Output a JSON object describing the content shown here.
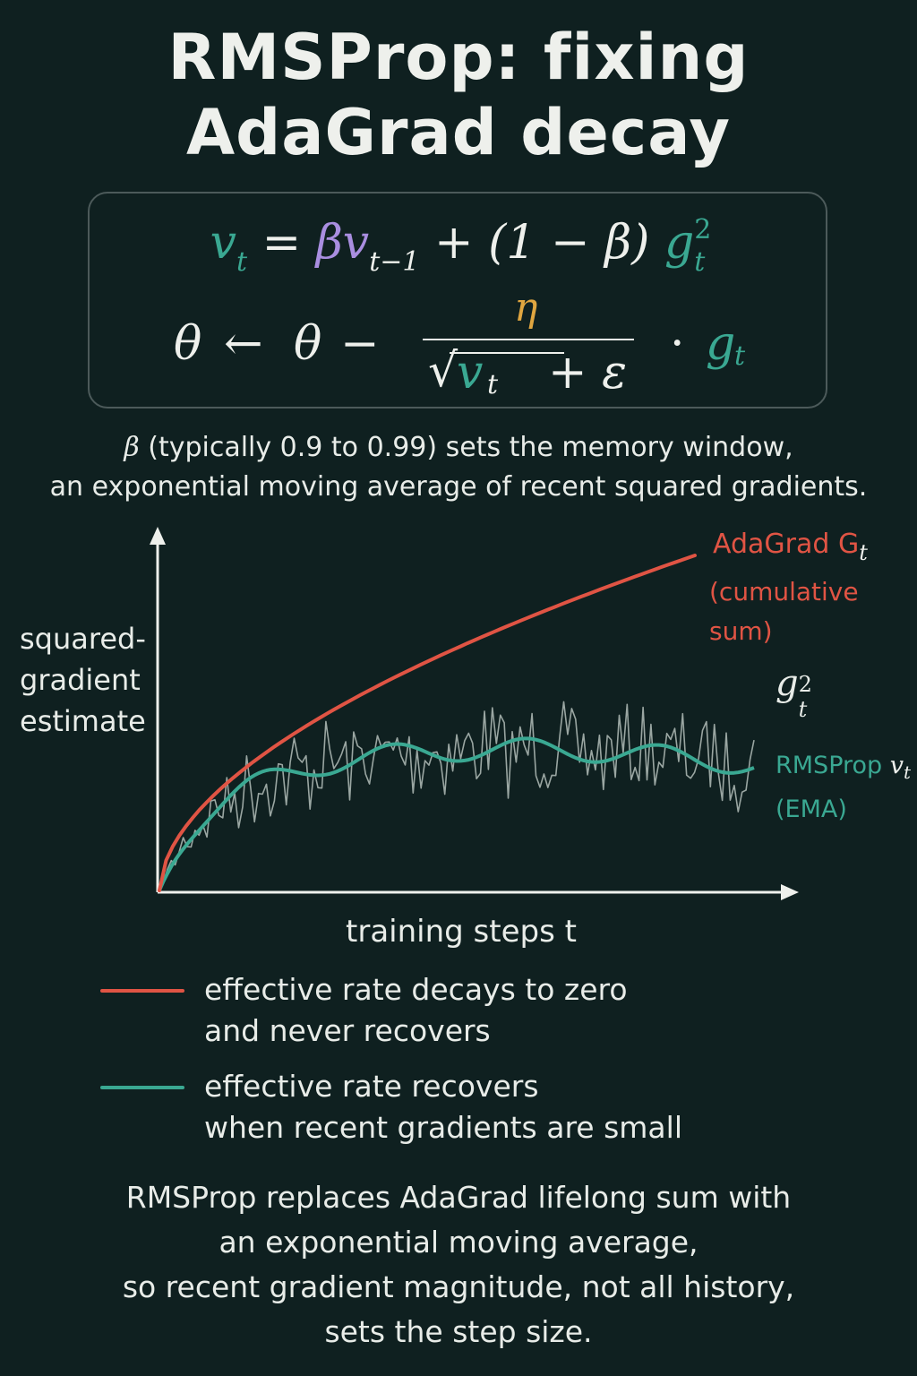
{
  "title": {
    "line1": "RMSProp: fixing",
    "line2": "AdaGrad decay"
  },
  "formula": {
    "eq1": {
      "v": "v",
      "t": "t",
      "eq": "=",
      "beta": "β",
      "v_prev": "v",
      "t_minus_1": "t−1",
      "plus": "+",
      "paren": "(1 − β)",
      "g": "g",
      "g_sub": "t",
      "g_sup": "2"
    },
    "eq2": {
      "theta": "θ",
      "arrow": "←",
      "theta2": "θ",
      "minus": "−",
      "eta": "η",
      "sqrt": "√",
      "v": "v",
      "v_sub": "t",
      "plus_eps": "+ ε",
      "dot": "·",
      "g": "g",
      "g_sub": "t"
    }
  },
  "caption": {
    "beta": "β",
    "line1_rest": " (typically 0.9 to 0.99) sets the memory window,",
    "line2": "an exponential moving average of recent squared gradients."
  },
  "chart": {
    "y_label": [
      "squared-",
      "gradient",
      "estimate"
    ],
    "x_label": "training steps t",
    "adagrad_label": "AdaGrad G",
    "adagrad_sub": "t",
    "adagrad_note": "(cumulative sum)",
    "g_label": "g",
    "g_sub": "t",
    "g_sup": "2",
    "rms_label": "RMSProp ",
    "rms_v": "v",
    "rms_sub": "t",
    "rms_note": "(EMA)",
    "colors": {
      "adagrad": "#e05444",
      "rmsprop": "#3aa892",
      "grad": "#9aa6a2",
      "axis": "#eef0ec"
    }
  },
  "legend": [
    {
      "color": "#e05444",
      "line1": "effective rate decays to zero",
      "line2": "and never recovers"
    },
    {
      "color": "#3aa892",
      "line1": "effective rate recovers",
      "line2": "when recent gradients are small"
    }
  ],
  "summary": [
    "RMSProp replaces AdaGrad lifelong sum with",
    "an exponential moving average,",
    "so recent gradient magnitude, not all history,",
    "sets the step size."
  ]
}
